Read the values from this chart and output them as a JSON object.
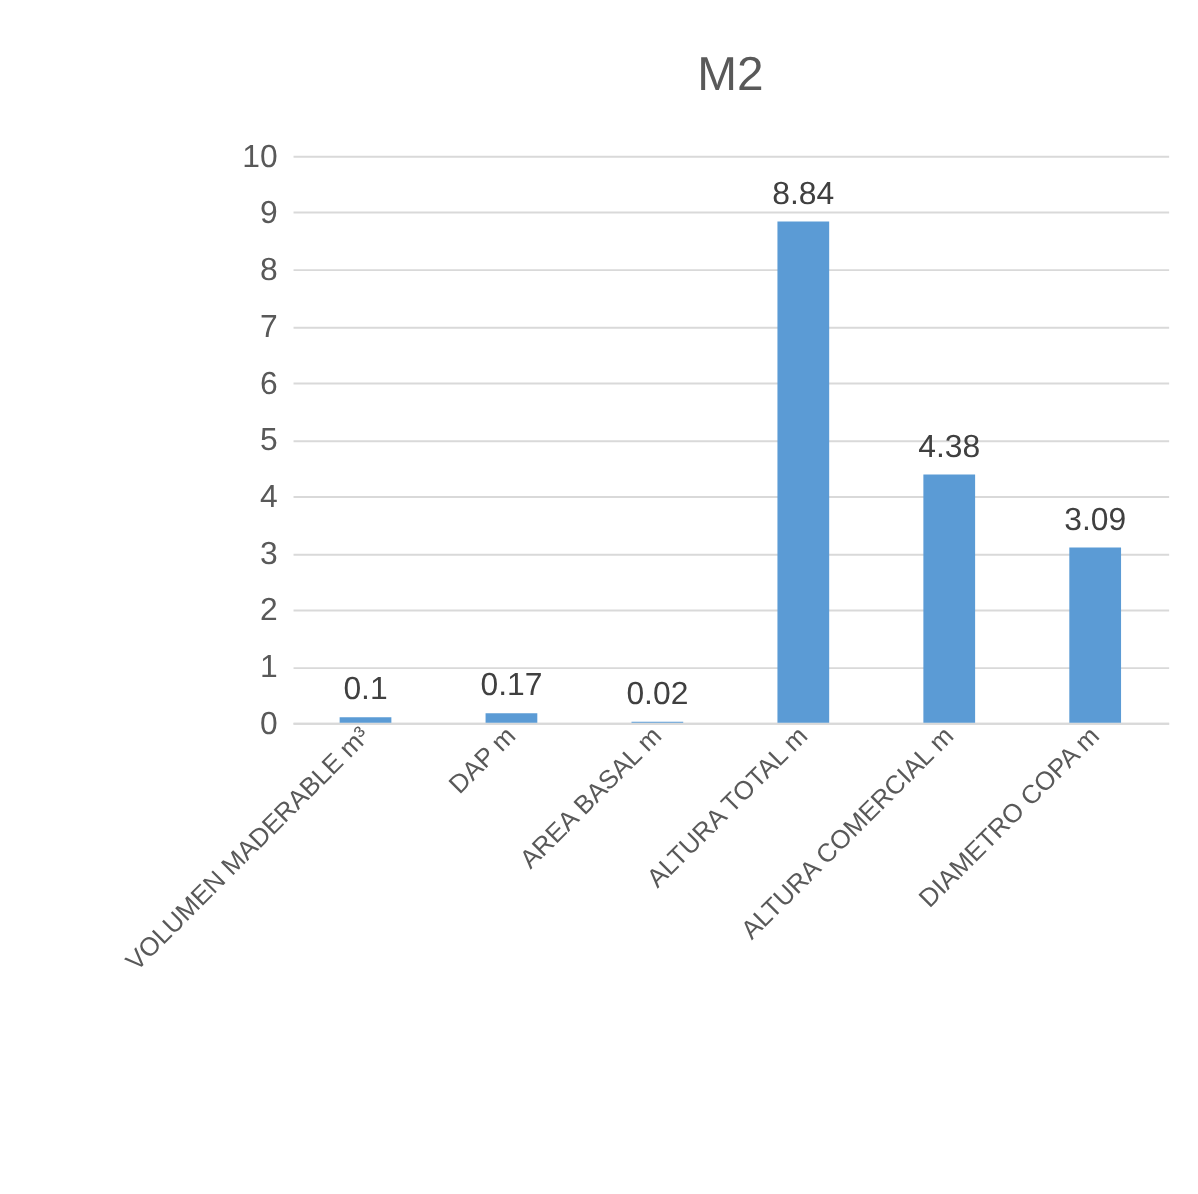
{
  "chart_data": {
    "type": "bar",
    "title": "M2",
    "categories": [
      "VOLUMEN MADERABLE m³",
      "DAP m",
      "AREA BASAL m",
      "ALTURA TOTAL m",
      "ALTURA COMERCIAL m",
      "DIAMETRO COPA m"
    ],
    "values": [
      0.1,
      0.17,
      0.02,
      8.84,
      4.38,
      3.09
    ],
    "color": "#5b9bd5",
    "ylim": [
      0,
      10
    ],
    "yticks": [
      0,
      1,
      2,
      3,
      4,
      5,
      6,
      7,
      8,
      9,
      10
    ],
    "grid": "y",
    "data_labels": true
  }
}
